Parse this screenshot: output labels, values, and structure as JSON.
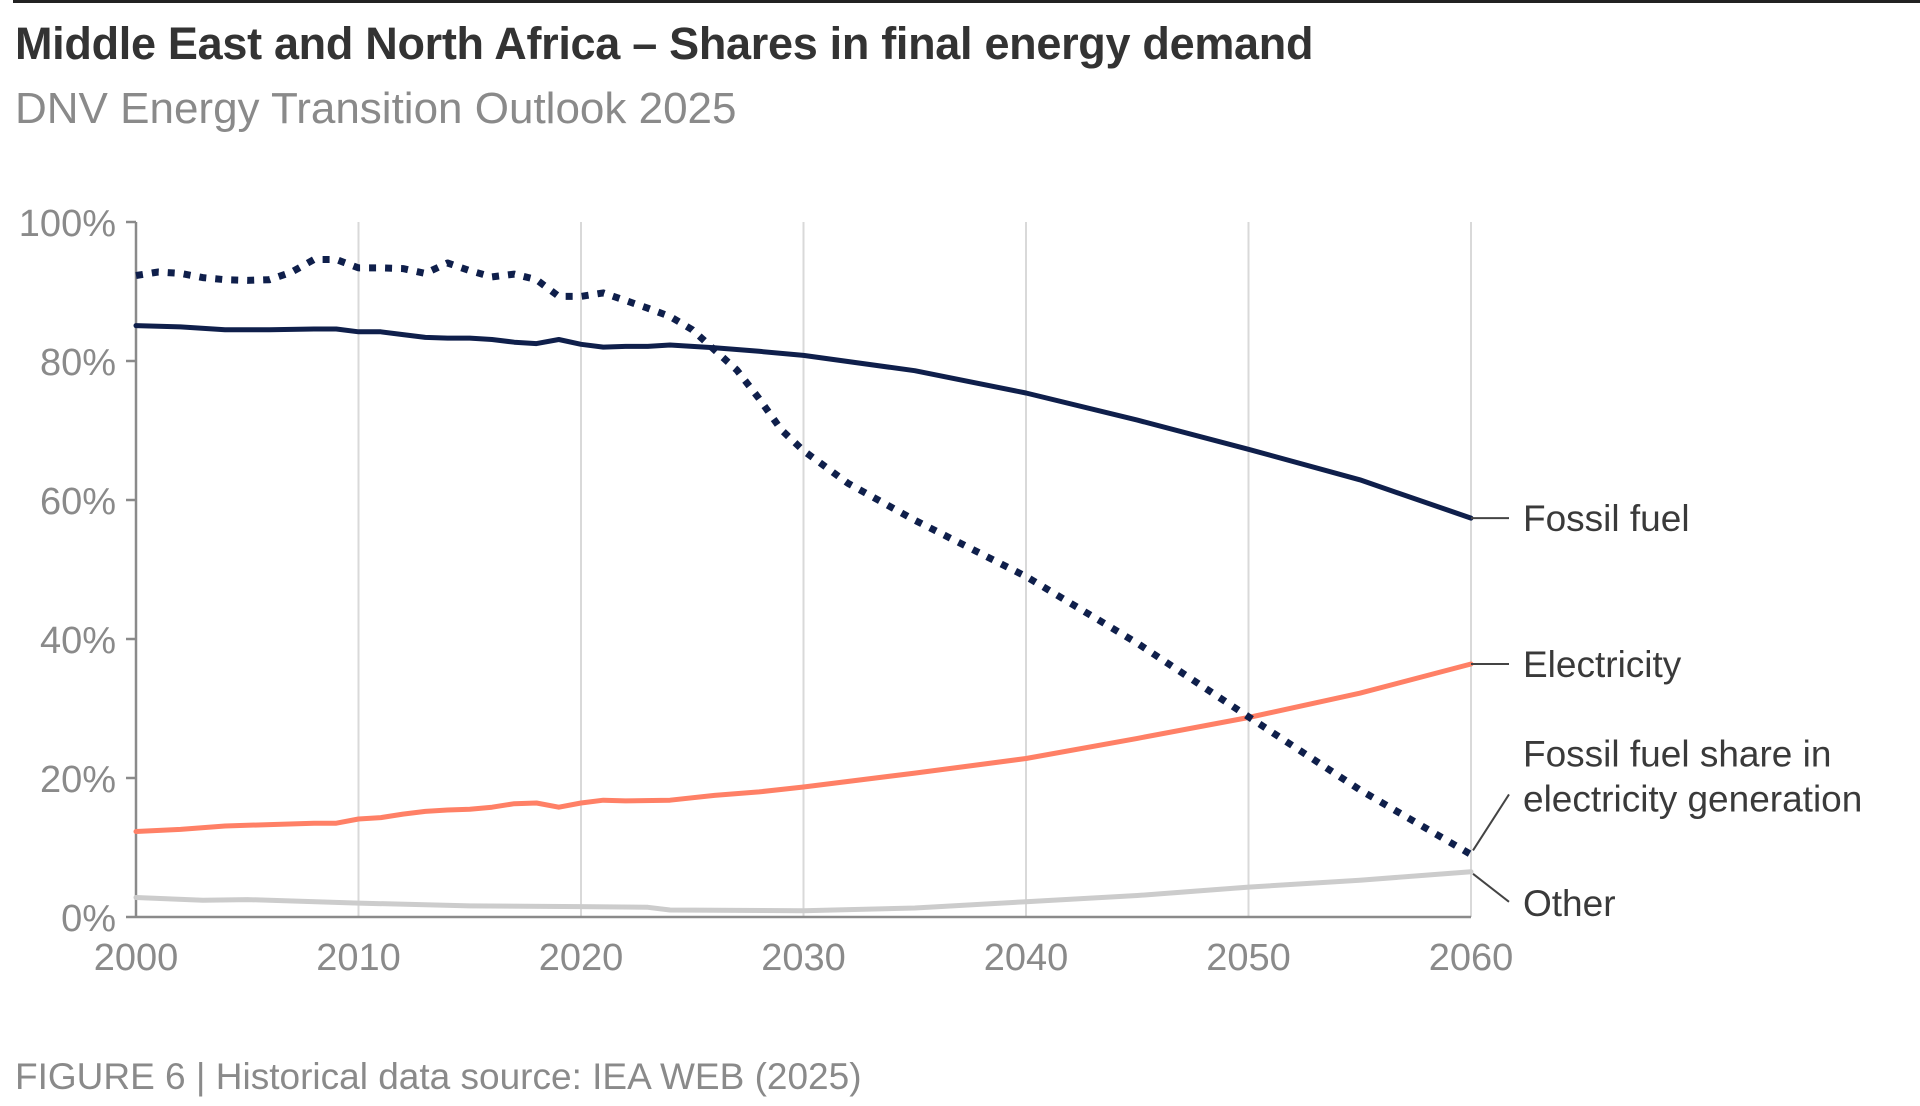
{
  "header": {
    "title": "Middle East and North Africa – Shares in final energy demand",
    "subtitle": "DNV Energy Transition Outlook 2025"
  },
  "footer": {
    "caption": "FIGURE 6 | Historical data source: IEA WEB (2025)"
  },
  "colors": {
    "fossil_fuel": "#0f1f4b",
    "electricity": "#ff8066",
    "fossil_share_electricity": "#0f1f4b",
    "other": "#cccccc",
    "axis": "#8a8a8a",
    "grid": "#d9d9d9"
  },
  "chart_data": {
    "type": "line",
    "title": "Middle East and North Africa – Shares in final energy demand",
    "subtitle": "DNV Energy Transition Outlook 2025",
    "xlabel": "",
    "ylabel": "",
    "xlim": [
      2000,
      2060
    ],
    "ylim": [
      0,
      100
    ],
    "x_ticks": [
      2000,
      2010,
      2020,
      2030,
      2040,
      2050,
      2060
    ],
    "x_tick_labels": [
      "2000",
      "2010",
      "2020",
      "2030",
      "2040",
      "2050",
      "2060"
    ],
    "y_ticks": [
      0,
      20,
      40,
      60,
      80,
      100
    ],
    "y_tick_labels": [
      "0%",
      "20%",
      "40%",
      "60%",
      "80%",
      "100%"
    ],
    "grid": "vertical",
    "legend": "right-end labels",
    "series": [
      {
        "name": "Fossil fuel",
        "style": "solid",
        "x": [
          2000,
          2002,
          2004,
          2006,
          2008,
          2009,
          2010,
          2011,
          2012,
          2013,
          2014,
          2015,
          2016,
          2017,
          2018,
          2019,
          2020,
          2021,
          2022,
          2023,
          2024,
          2026,
          2028,
          2030,
          2035,
          2040,
          2045,
          2050,
          2055,
          2060
        ],
        "values": [
          85.1,
          84.9,
          84.5,
          84.5,
          84.6,
          84.6,
          84.2,
          84.2,
          83.8,
          83.4,
          83.3,
          83.3,
          83.1,
          82.7,
          82.5,
          83.1,
          82.4,
          82.0,
          82.1,
          82.1,
          82.3,
          81.9,
          81.4,
          80.8,
          78.6,
          75.4,
          71.5,
          67.3,
          62.9,
          57.4
        ]
      },
      {
        "name": "Electricity",
        "style": "solid",
        "x": [
          2000,
          2002,
          2004,
          2006,
          2008,
          2009,
          2010,
          2011,
          2012,
          2013,
          2014,
          2015,
          2016,
          2017,
          2018,
          2019,
          2020,
          2021,
          2022,
          2024,
          2026,
          2028,
          2030,
          2035,
          2040,
          2045,
          2050,
          2055,
          2060
        ],
        "values": [
          12.3,
          12.6,
          13.1,
          13.3,
          13.5,
          13.5,
          14.1,
          14.3,
          14.8,
          15.2,
          15.4,
          15.5,
          15.8,
          16.3,
          16.4,
          15.8,
          16.4,
          16.8,
          16.7,
          16.8,
          17.5,
          18.0,
          18.7,
          20.7,
          22.8,
          25.7,
          28.7,
          32.2,
          36.4
        ]
      },
      {
        "name": "Fossil fuel share in electricity generation",
        "style": "dotted",
        "x": [
          2000,
          2001,
          2002,
          2003,
          2004,
          2005,
          2006,
          2007,
          2008,
          2009,
          2010,
          2011,
          2012,
          2013,
          2014,
          2015,
          2016,
          2017,
          2018,
          2019,
          2020,
          2021,
          2022,
          2023,
          2024,
          2025,
          2026,
          2027,
          2028,
          2029,
          2030,
          2032,
          2035,
          2040,
          2045,
          2050,
          2055,
          2060
        ],
        "values": [
          92.3,
          92.8,
          92.6,
          92.0,
          91.7,
          91.6,
          91.7,
          92.8,
          94.6,
          94.6,
          93.4,
          93.4,
          93.3,
          92.6,
          94.1,
          93.0,
          92.1,
          92.5,
          91.7,
          89.3,
          89.3,
          89.8,
          88.7,
          87.6,
          86.4,
          84.5,
          81.6,
          78.7,
          74.6,
          70.1,
          67.1,
          62.4,
          57.1,
          49.0,
          39.4,
          28.8,
          18.3,
          9.0
        ]
      },
      {
        "name": "Other",
        "style": "solid",
        "x": [
          2000,
          2003,
          2005,
          2010,
          2015,
          2020,
          2023,
          2024,
          2030,
          2035,
          2040,
          2045,
          2050,
          2055,
          2060
        ],
        "values": [
          2.8,
          2.4,
          2.5,
          2.0,
          1.6,
          1.5,
          1.4,
          1.0,
          0.9,
          1.3,
          2.2,
          3.1,
          4.3,
          5.3,
          6.5
        ]
      }
    ],
    "legend_entries": [
      {
        "label_lines": [
          "Fossil fuel"
        ]
      },
      {
        "label_lines": [
          "Electricity"
        ]
      },
      {
        "label_lines": [
          "Fossil fuel share in",
          "electricity generation"
        ]
      },
      {
        "label_lines": [
          "Other"
        ]
      }
    ]
  }
}
